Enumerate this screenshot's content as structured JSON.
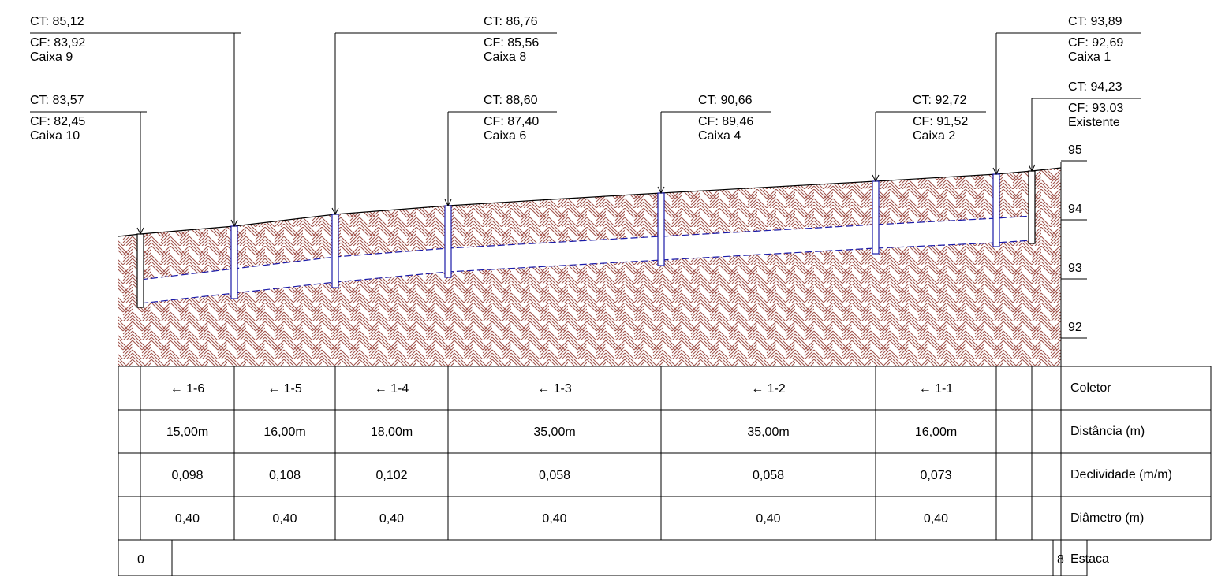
{
  "manholes": [
    {
      "id": "caixa-10",
      "ct": "CT: 83,57",
      "cf": "CF: 82,45",
      "name": "Caixa 10"
    },
    {
      "id": "caixa-9",
      "ct": "CT: 85,12",
      "cf": "CF: 83,92",
      "name": "Caixa 9"
    },
    {
      "id": "caixa-8",
      "ct": "CT: 86,76",
      "cf": "CF: 85,56",
      "name": "Caixa 8"
    },
    {
      "id": "caixa-6",
      "ct": "CT: 88,60",
      "cf": "CF: 87,40",
      "name": "Caixa 6"
    },
    {
      "id": "caixa-4",
      "ct": "CT: 90,66",
      "cf": "CF: 89,46",
      "name": "Caixa 4"
    },
    {
      "id": "caixa-2",
      "ct": "CT: 92,72",
      "cf": "CF: 91,52",
      "name": "Caixa 2"
    },
    {
      "id": "caixa-1",
      "ct": "CT: 93,89",
      "cf": "CF: 92,69",
      "name": "Caixa 1"
    },
    {
      "id": "existente",
      "ct": "CT: 94,23",
      "cf": "CF: 93,03",
      "name": "Existente"
    }
  ],
  "elevation_scale": [
    "95",
    "94",
    "93",
    "92"
  ],
  "table": {
    "row_labels": [
      "Coletor",
      "Distância (m)",
      "Declividade (m/m)",
      "Diâmetro (m)",
      "Estaca"
    ],
    "segments": [
      {
        "coletor": "← 1-6",
        "distancia": "15,00m",
        "declividade": "0,098",
        "diametro": "0,40"
      },
      {
        "coletor": "← 1-5",
        "distancia": "16,00m",
        "declividade": "0,108",
        "diametro": "0,40"
      },
      {
        "coletor": "← 1-4",
        "distancia": "18,00m",
        "declividade": "0,102",
        "diametro": "0,40"
      },
      {
        "coletor": "← 1-3",
        "distancia": "35,00m",
        "declividade": "0,058",
        "diametro": "0,40"
      },
      {
        "coletor": "← 1-2",
        "distancia": "35,00m",
        "declividade": "0,058",
        "diametro": "0,40"
      },
      {
        "coletor": "← 1-1",
        "distancia": "16,00m",
        "declividade": "0,073",
        "diametro": "0,40"
      }
    ],
    "estaca_start": "0",
    "estaca_end": "8"
  },
  "colors": {
    "soil_hatch": "#a0524a",
    "pipe": "#1a1aa8",
    "line": "#000000"
  }
}
